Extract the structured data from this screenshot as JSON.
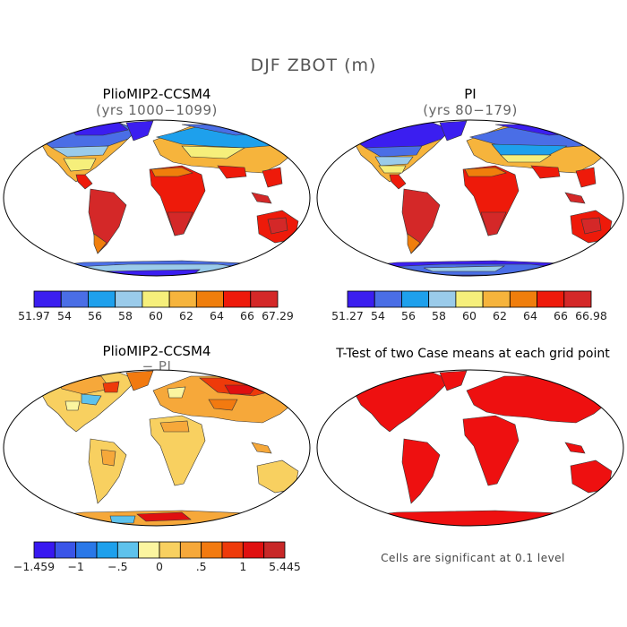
{
  "figure": {
    "title": "DJF ZBOT (m)"
  },
  "panels": [
    {
      "id": "pliomip",
      "title": "PlioMIP2-CCSM4",
      "subtitle": "(yrs 1000−1099)",
      "colorbar": {
        "colors": [
          "#3b1ef0",
          "#4a6ee6",
          "#1ea0ec",
          "#9acbea",
          "#f6ef7b",
          "#f6b43c",
          "#f07e0c",
          "#ee1a0a",
          "#d42828"
        ],
        "labels": [
          "51.97",
          "54",
          "56",
          "58",
          "60",
          "62",
          "64",
          "66",
          "67.29"
        ]
      }
    },
    {
      "id": "pi",
      "title": "PI",
      "subtitle": "(yrs 80−179)",
      "colorbar": {
        "colors": [
          "#3b1ef0",
          "#4a6ee6",
          "#1ea0ec",
          "#9acbea",
          "#f6ef7b",
          "#f6b43c",
          "#f07e0c",
          "#ee1a0a",
          "#d42828"
        ],
        "labels": [
          "51.27",
          "54",
          "56",
          "58",
          "60",
          "62",
          "64",
          "66",
          "66.98"
        ]
      }
    },
    {
      "id": "diff",
      "title": "PlioMIP2-CCSM4",
      "subtitle": "− PI",
      "colorbar": {
        "colors": [
          "#3818f0",
          "#3a55e8",
          "#2a78e8",
          "#1ea0ec",
          "#5ec2ec",
          "#fbf5a0",
          "#f8d060",
          "#f6a83a",
          "#f27a10",
          "#ee3a0a",
          "#e01010",
          "#c82828"
        ],
        "labels": [
          "−1.459",
          "−1",
          "−.5",
          "0",
          ".5",
          "1",
          "5.445"
        ]
      }
    },
    {
      "id": "ttest",
      "title": "T-Test of two Case means at each grid point",
      "note": "Cells are significant at 0.1 level",
      "fill_color": "#ee1010"
    }
  ]
}
